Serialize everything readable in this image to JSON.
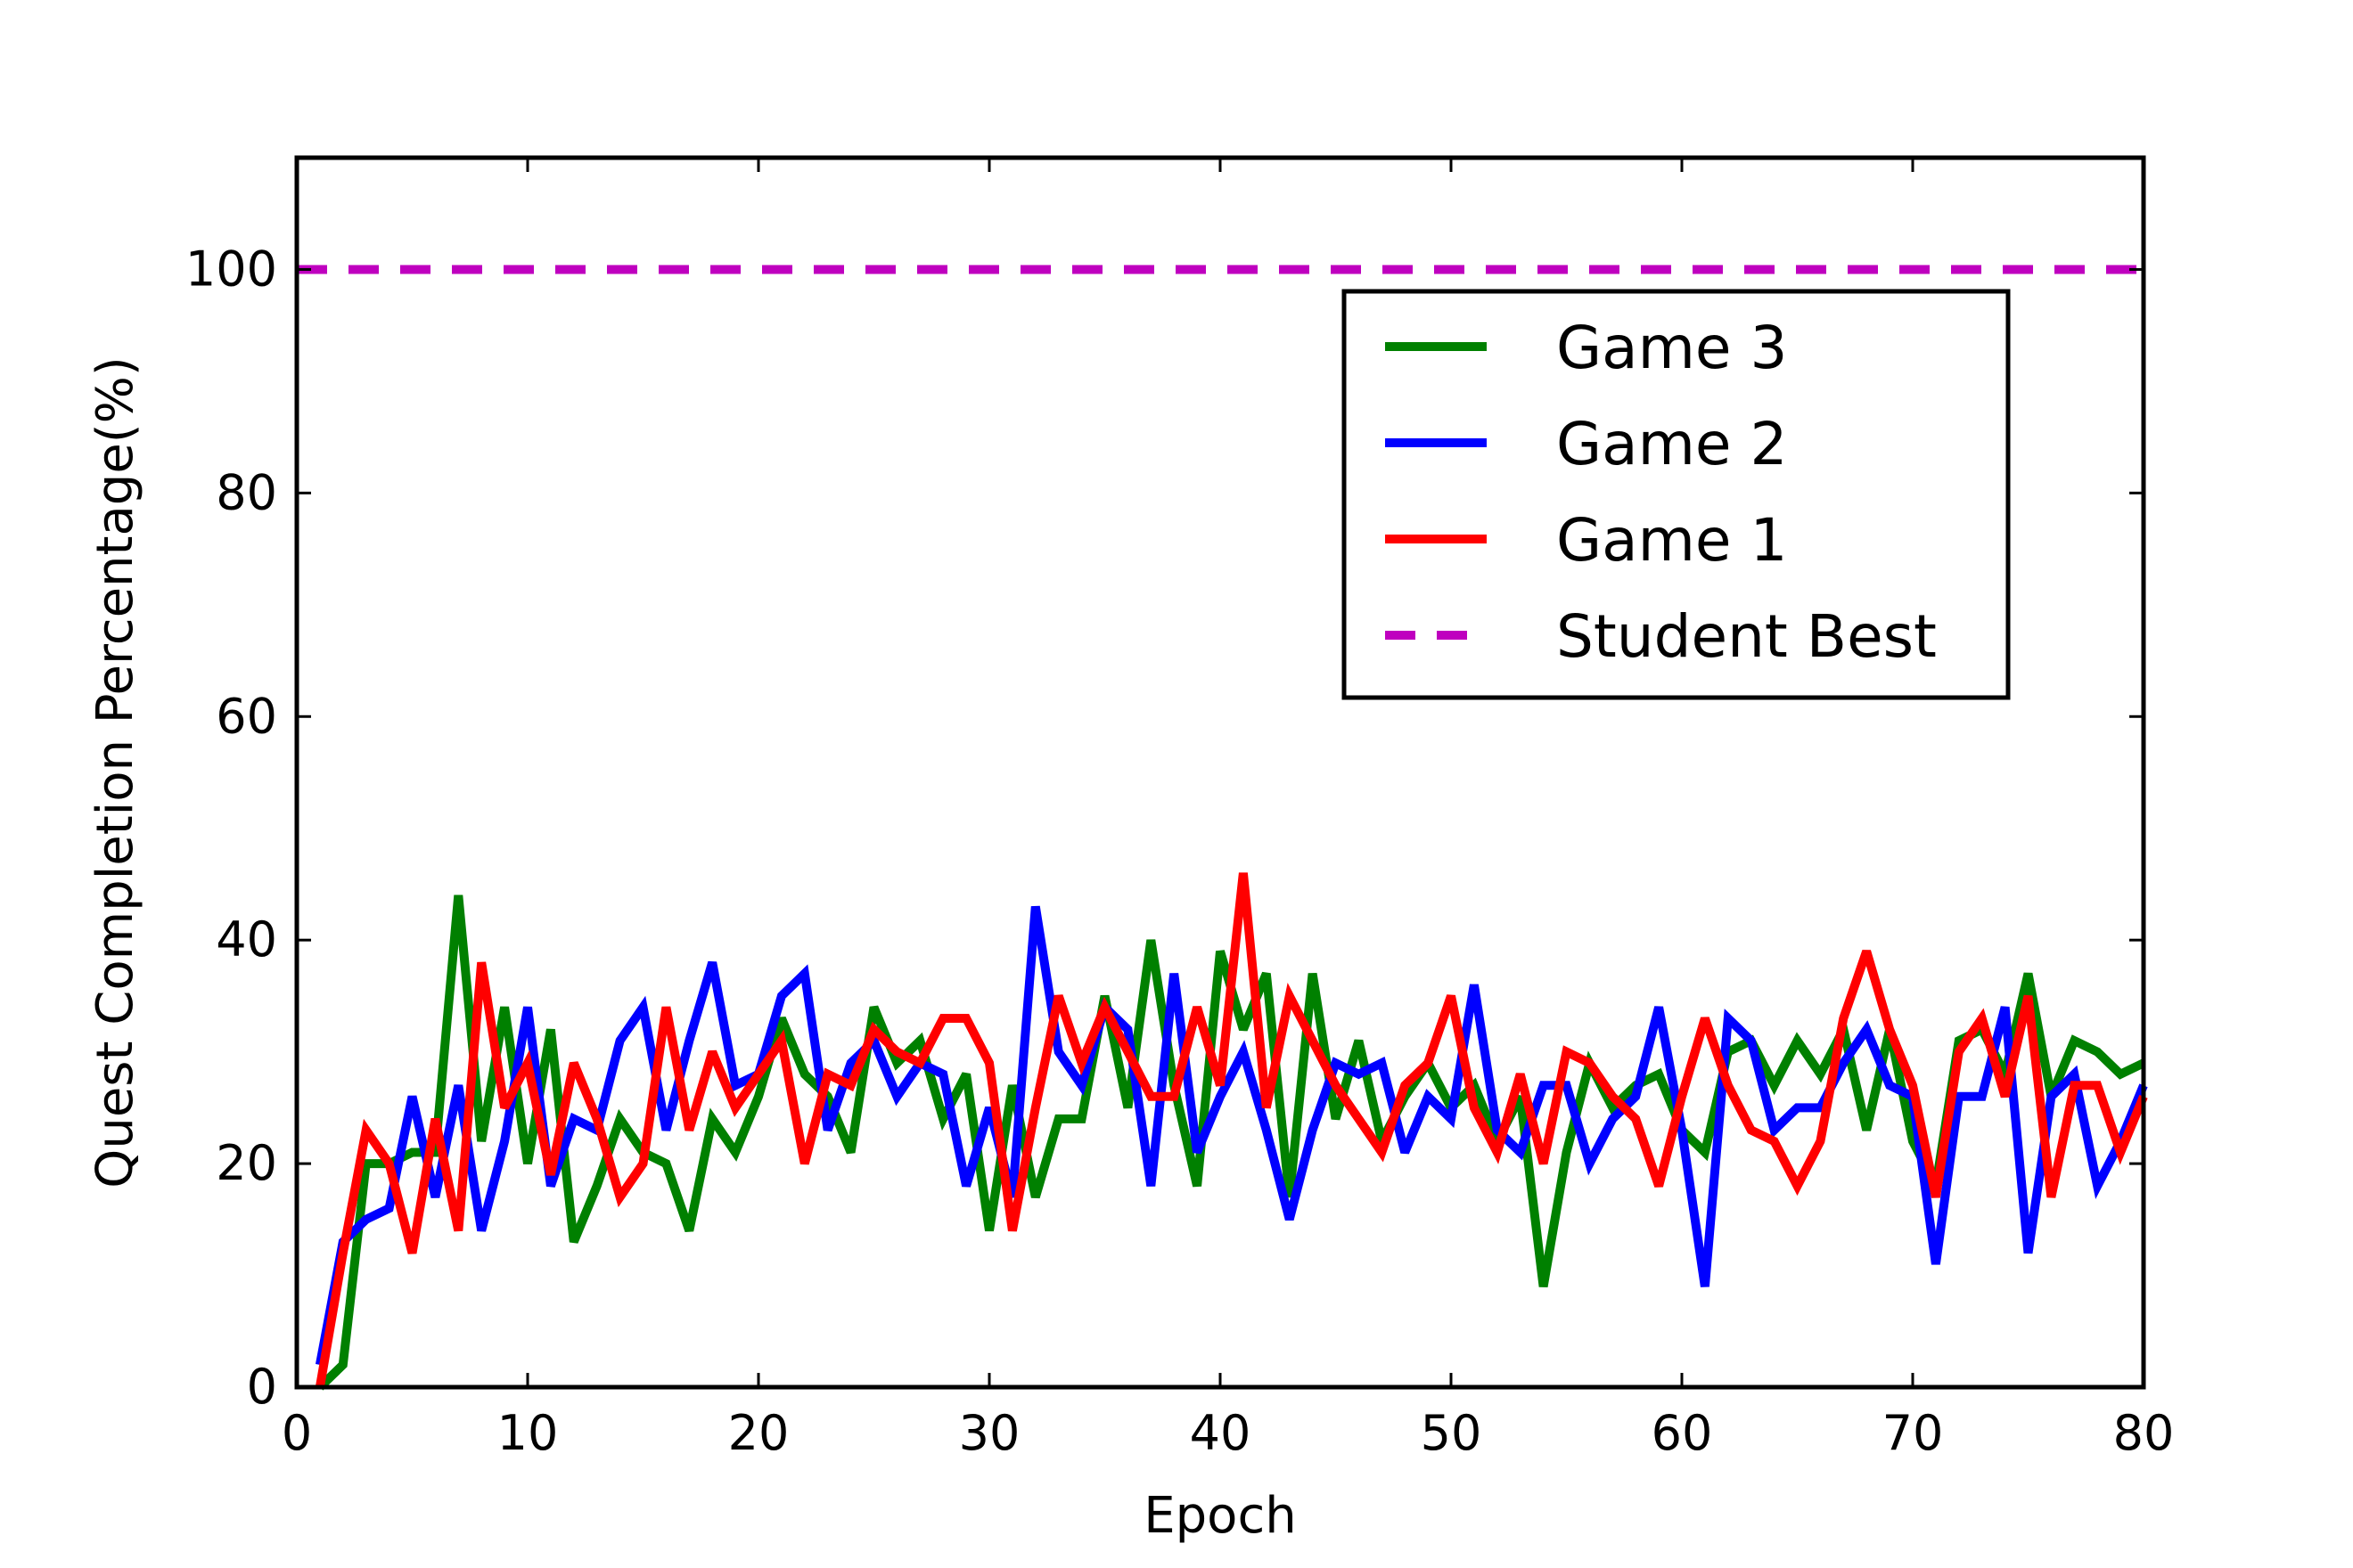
{
  "chart_data": {
    "type": "line",
    "title": "",
    "xlabel": "Epoch",
    "ylabel": "Quest Completion Percentage(%)",
    "xlim": [
      0,
      80
    ],
    "ylim": [
      0,
      110
    ],
    "xticks": [
      0,
      10,
      20,
      30,
      40,
      50,
      60,
      70,
      80
    ],
    "yticks": [
      0,
      20,
      40,
      60,
      80,
      100
    ],
    "grid": false,
    "legend_position": "upper-right",
    "x": [
      1,
      2,
      3,
      4,
      5,
      6,
      7,
      8,
      9,
      10,
      11,
      12,
      13,
      14,
      15,
      16,
      17,
      18,
      19,
      20,
      21,
      22,
      23,
      24,
      25,
      26,
      27,
      28,
      29,
      30,
      31,
      32,
      33,
      34,
      35,
      36,
      37,
      38,
      39,
      40,
      41,
      42,
      43,
      44,
      45,
      46,
      47,
      48,
      49,
      50,
      51,
      52,
      53,
      54,
      55,
      56,
      57,
      58,
      59,
      60,
      61,
      62,
      63,
      64,
      65,
      66,
      67,
      68,
      69,
      70,
      71,
      72,
      73,
      74,
      75,
      76,
      77,
      78,
      79,
      80
    ],
    "series": [
      {
        "name": "Game 3",
        "color": "#008000",
        "style": "solid",
        "values": [
          0,
          2,
          20,
          20,
          21,
          21,
          44,
          22,
          34,
          20,
          32,
          13,
          18,
          24,
          21,
          20,
          14,
          24,
          21,
          26,
          33,
          28,
          26,
          21,
          34,
          29,
          31,
          24,
          28,
          14,
          27,
          17,
          24,
          24,
          35,
          25,
          40,
          27,
          18,
          39,
          32,
          37,
          17,
          37,
          24,
          31,
          22,
          26,
          29,
          25,
          27,
          22,
          26,
          9,
          21,
          29,
          25,
          27,
          28,
          23,
          21,
          30,
          31,
          27,
          31,
          28,
          32,
          23,
          32,
          22,
          18,
          31,
          32,
          28,
          37,
          26,
          31,
          30,
          28,
          29
        ]
      },
      {
        "name": "Game 2",
        "color": "#0000ff",
        "style": "solid",
        "values": [
          2,
          13,
          15,
          16,
          26,
          17,
          27,
          14,
          22,
          34,
          18,
          24,
          23,
          31,
          34,
          23,
          31,
          38,
          27,
          28,
          35,
          37,
          23,
          29,
          31,
          26,
          29,
          28,
          18,
          25,
          17,
          43,
          30,
          27,
          34,
          32,
          18,
          37,
          21,
          26,
          30,
          23,
          15,
          23,
          29,
          28,
          29,
          21,
          26,
          24,
          36,
          23,
          21,
          27,
          27,
          20,
          24,
          26,
          34,
          23,
          9,
          33,
          31,
          23,
          25,
          25,
          29,
          32,
          27,
          26,
          11,
          26,
          26,
          34,
          12,
          26,
          28,
          18,
          22,
          27
        ]
      },
      {
        "name": "Game 1",
        "color": "#ff0000",
        "style": "solid",
        "values": [
          0,
          12,
          23,
          20,
          12,
          24,
          14,
          38,
          25,
          29,
          19,
          29,
          24,
          17,
          20,
          34,
          23,
          30,
          25,
          28,
          31,
          20,
          28,
          27,
          32,
          30,
          29,
          33,
          33,
          29,
          14,
          25,
          35,
          29,
          34,
          30,
          26,
          26,
          34,
          27,
          46,
          25,
          35,
          31,
          27,
          24,
          21,
          27,
          29,
          35,
          25,
          21,
          28,
          20,
          30,
          29,
          26,
          24,
          18,
          26,
          33,
          27,
          23,
          22,
          18,
          22,
          33,
          39,
          32,
          27,
          17,
          30,
          33,
          26,
          35,
          17,
          27,
          27,
          21,
          26
        ]
      },
      {
        "name": "Student Best",
        "color": "#bf00bf",
        "style": "dashed",
        "constant": 100
      }
    ]
  }
}
